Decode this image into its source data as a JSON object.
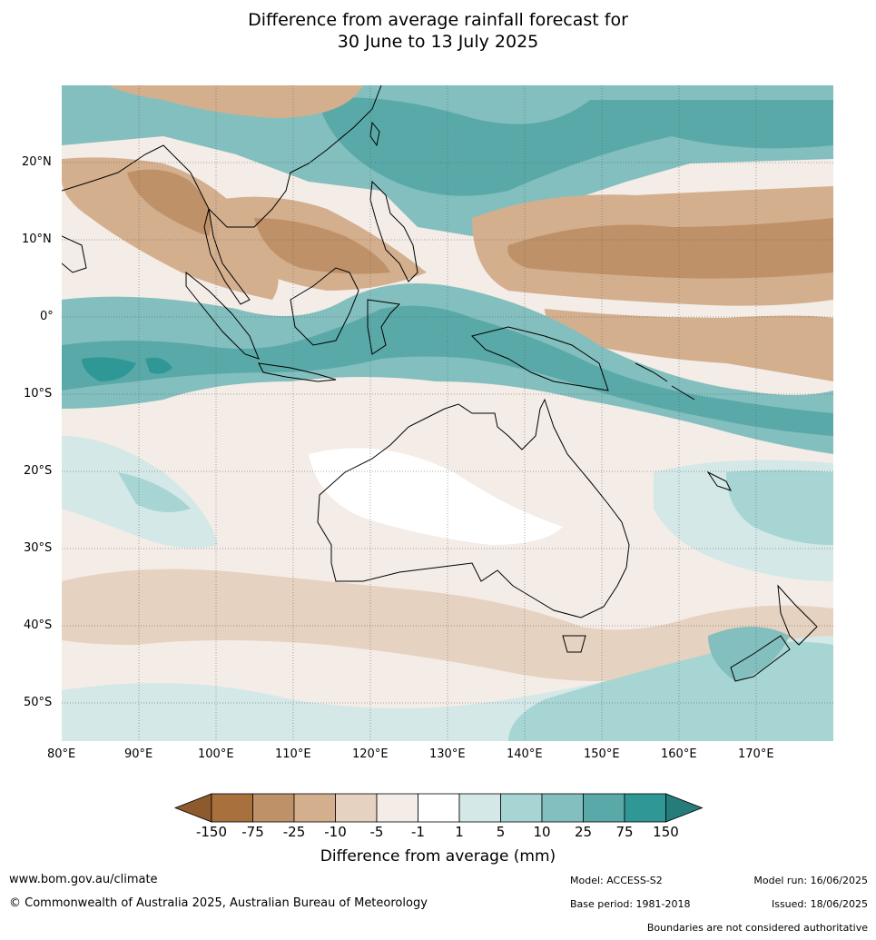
{
  "title": {
    "line1": "Difference from average rainfall forecast for",
    "line2": "30 June to 13 July 2025"
  },
  "map": {
    "lon_range": [
      80,
      180
    ],
    "lat_range": [
      -55,
      30
    ],
    "lat_labels": [
      "20°N",
      "10°N",
      "0°",
      "10°S",
      "20°S",
      "30°S",
      "40°S",
      "50°S"
    ],
    "lon_labels": [
      "80°E",
      "90°E",
      "100°E",
      "110°E",
      "120°E",
      "130°E",
      "140°E",
      "150°E",
      "160°E",
      "170°E"
    ],
    "regions": [
      "Australia",
      "New Zealand",
      "Papua New Guinea",
      "Indonesia",
      "Philippines",
      "Southeast Asia",
      "Tasmania"
    ]
  },
  "legend": {
    "title": "Difference from average (mm)",
    "tick_labels": [
      "-150",
      "-75",
      "-25",
      "-10",
      "-5",
      "-1",
      "1",
      "5",
      "10",
      "25",
      "75",
      "150"
    ],
    "colors": [
      "#a7703c",
      "#bf9168",
      "#d3af8e",
      "#e6d2c0",
      "#f4ece6",
      "#ffffff",
      "#d3e8e7",
      "#a7d5d4",
      "#82bfbe",
      "#5aa9a9",
      "#2f9896"
    ],
    "left_arrow_color": "#8c5a2c",
    "right_arrow_color": "#257c7b"
  },
  "footer": {
    "url": "www.bom.gov.au/climate",
    "copyright": "© Commonwealth of Australia 2025, Australian Bureau of Meteorology",
    "model": "Model: ACCESS-S2",
    "base_period": "Base period: 1981-2018",
    "model_run": "Model run: 16/06/2025",
    "issued": "Issued: 18/06/2025",
    "disclaimer": "Boundaries are not considered authoritative"
  }
}
